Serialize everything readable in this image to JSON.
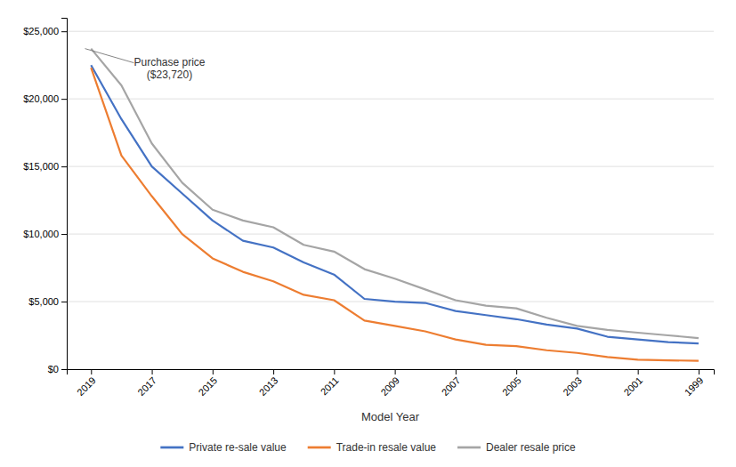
{
  "chart_data": {
    "type": "line",
    "xlabel": "Model Year",
    "x": [
      2019,
      2018,
      2017,
      2016,
      2015,
      2014,
      2013,
      2012,
      2011,
      2010,
      2009,
      2008,
      2007,
      2006,
      2005,
      2004,
      2003,
      2002,
      2001,
      2000,
      1999
    ],
    "series": [
      {
        "name": "Private re-sale value",
        "color": "#4472C4",
        "values": [
          22500,
          18500,
          15000,
          13000,
          11000,
          9500,
          9000,
          7900,
          7000,
          5200,
          5000,
          4900,
          4300,
          4000,
          3700,
          3300,
          3000,
          2400,
          2200,
          2000,
          1900
        ]
      },
      {
        "name": "Trade-in resale value",
        "color": "#ED7D31",
        "values": [
          22300,
          15800,
          12800,
          10000,
          8200,
          7200,
          6500,
          5500,
          5100,
          3600,
          3200,
          2800,
          2200,
          1800,
          1700,
          1400,
          1200,
          900,
          700,
          650,
          620
        ]
      },
      {
        "name": "Dealer resale price",
        "color": "#A5A5A5",
        "values": [
          23720,
          21000,
          16700,
          13800,
          11800,
          11000,
          10500,
          9200,
          8700,
          7400,
          6700,
          5900,
          5100,
          4700,
          4500,
          3800,
          3200,
          2900,
          2700,
          2500,
          2300
        ]
      }
    ],
    "xlim": [
      2019.8,
      1998.5
    ],
    "xticks": [
      2019,
      2017,
      2015,
      2013,
      2011,
      2009,
      2007,
      2005,
      2003,
      2001,
      1999
    ],
    "ylim": [
      0,
      26000
    ],
    "yticks": [
      {
        "value": 0,
        "label": "$0"
      },
      {
        "value": 5000,
        "label": "$5,000"
      },
      {
        "value": 10000,
        "label": "$10,000"
      },
      {
        "value": 15000,
        "label": "$15,000"
      },
      {
        "value": 20000,
        "label": "$20,000"
      },
      {
        "value": 25000,
        "label": "$25,000"
      }
    ],
    "grid": true,
    "legend": "bottom",
    "annotations": [
      {
        "text": "Purchase price\n($23,720)",
        "x": 2019.2,
        "y": 23720
      }
    ]
  }
}
